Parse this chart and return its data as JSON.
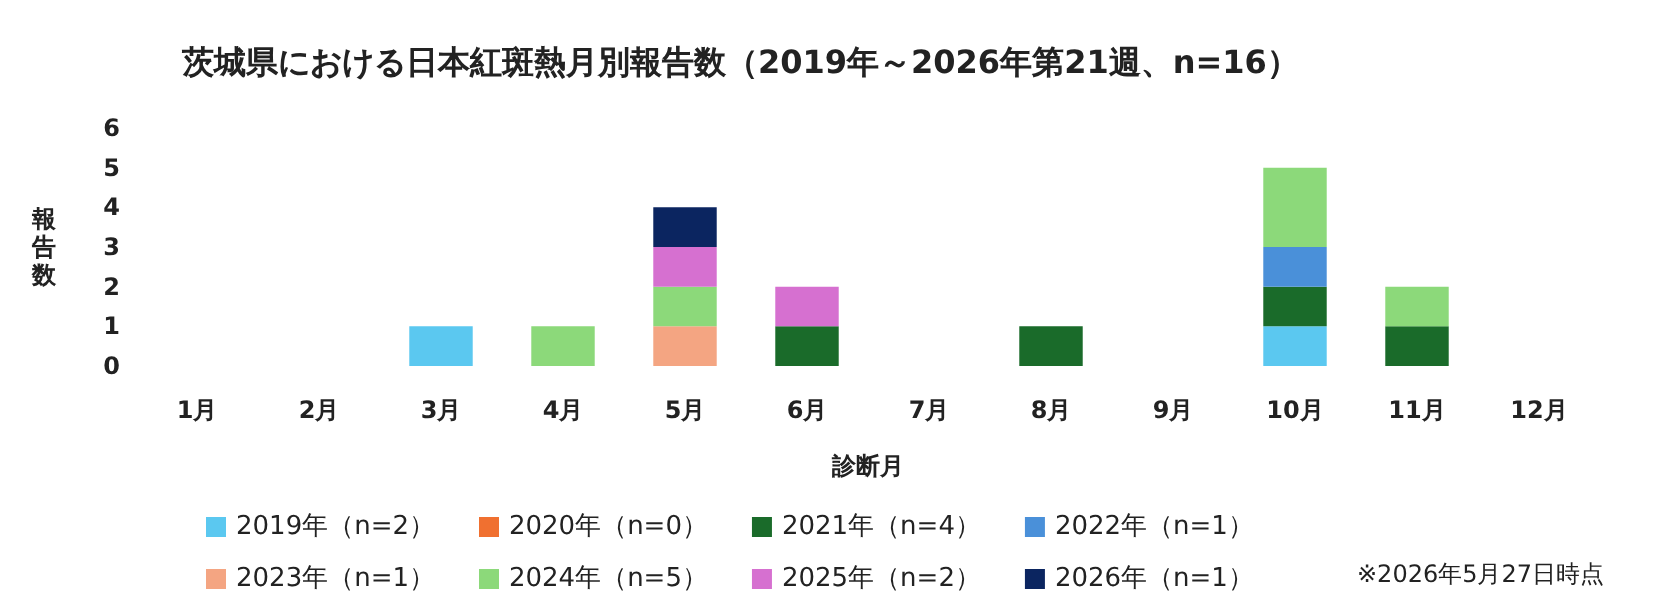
{
  "chart_data": {
    "type": "bar",
    "stacked": true,
    "title": "茨城県における日本紅斑熱月別報告数（2019年～2026年第21週、n=16）",
    "xlabel": "診断月",
    "ylabel": "報告数",
    "categories": [
      "1月",
      "2月",
      "3月",
      "4月",
      "5月",
      "6月",
      "7月",
      "8月",
      "9月",
      "10月",
      "11月",
      "12月"
    ],
    "series": [
      {
        "name": "2019年（n=2）",
        "color": "#5bc8f0",
        "values": [
          0,
          0,
          1,
          0,
          0,
          0,
          0,
          0,
          0,
          1,
          0,
          0
        ]
      },
      {
        "name": "2020年（n=0）",
        "color": "#f07030",
        "values": [
          0,
          0,
          0,
          0,
          0,
          0,
          0,
          0,
          0,
          0,
          0,
          0
        ]
      },
      {
        "name": "2021年（n=4）",
        "color": "#1a6b2a",
        "values": [
          0,
          0,
          0,
          0,
          0,
          1,
          0,
          1,
          0,
          1,
          1,
          0
        ]
      },
      {
        "name": "2022年（n=1）",
        "color": "#4a90d9",
        "values": [
          0,
          0,
          0,
          0,
          0,
          0,
          0,
          0,
          0,
          1,
          0,
          0
        ]
      },
      {
        "name": "2023年（n=1）",
        "color": "#f4a582",
        "values": [
          0,
          0,
          0,
          0,
          1,
          0,
          0,
          0,
          0,
          0,
          0,
          0
        ]
      },
      {
        "name": "2024年（n=5）",
        "color": "#8cd97a",
        "values": [
          0,
          0,
          0,
          1,
          1,
          0,
          0,
          0,
          0,
          2,
          1,
          0
        ]
      },
      {
        "name": "2025年（n=2）",
        "color": "#d670d0",
        "values": [
          0,
          0,
          0,
          0,
          1,
          1,
          0,
          0,
          0,
          0,
          0,
          0
        ]
      },
      {
        "name": "2026年（n=1）",
        "color": "#0b2560",
        "values": [
          0,
          0,
          0,
          0,
          1,
          0,
          0,
          0,
          0,
          0,
          0,
          0
        ]
      }
    ],
    "ylim": [
      0,
      6
    ],
    "yticks": [
      0,
      1,
      2,
      3,
      4,
      5,
      6
    ],
    "grid": false,
    "legend": "bottom",
    "annotations": [
      "※2026年5月27日時点"
    ]
  }
}
